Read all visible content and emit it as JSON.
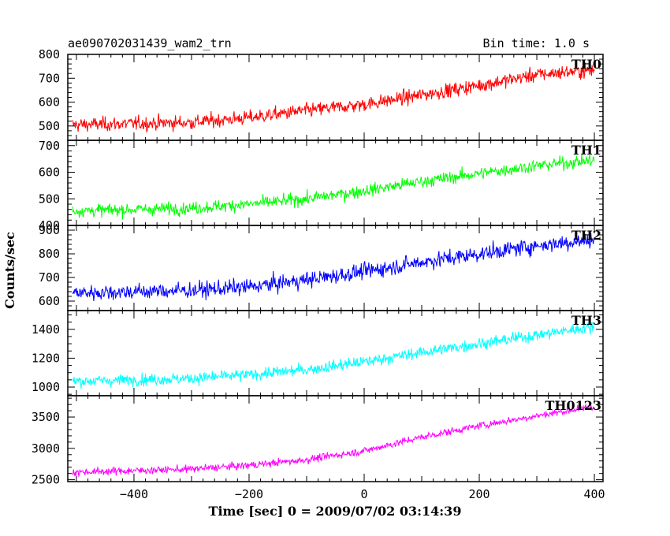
{
  "header": {
    "title": "ae090702031439_wam2_trn",
    "bin_time": "Bin time: 1.0 s"
  },
  "chart_data": {
    "type": "line",
    "xlabel": "Time [sec] 0 = 2009/07/02 03:14:39",
    "ylabel": "Counts/sec",
    "xlim": [
      -515,
      415
    ],
    "x_ticks": [
      -400,
      -200,
      0,
      200,
      400
    ],
    "x_tick_labels": [
      "−400",
      "−200",
      "0",
      "200",
      "400"
    ],
    "x_range": [
      -507,
      400
    ],
    "bin": 1.0,
    "series": [
      {
        "name": "TH0",
        "color": "#ff0000",
        "ylim": [
          440,
          800
        ],
        "y_ticks": [
          500,
          600,
          700,
          800
        ],
        "y_tick_labels": [
          "500",
          "600",
          "700",
          "800"
        ],
        "trend": [
          [
            -500,
            505
          ],
          [
            -300,
            515
          ],
          [
            -200,
            535
          ],
          [
            -100,
            565
          ],
          [
            0,
            590
          ],
          [
            100,
            630
          ],
          [
            200,
            670
          ],
          [
            300,
            715
          ],
          [
            400,
            735
          ]
        ],
        "noise_sd": 28
      },
      {
        "name": "TH1",
        "color": "#00ff00",
        "ylim": [
          400,
          720
        ],
        "y_ticks": [
          400,
          500,
          600,
          700
        ],
        "y_tick_labels": [
          "400",
          "500",
          "600",
          "700"
        ],
        "trend": [
          [
            -500,
            455
          ],
          [
            -300,
            465
          ],
          [
            -200,
            480
          ],
          [
            -100,
            500
          ],
          [
            0,
            530
          ],
          [
            100,
            565
          ],
          [
            200,
            595
          ],
          [
            300,
            625
          ],
          [
            400,
            645
          ]
        ],
        "noise_sd": 22
      },
      {
        "name": "TH2",
        "color": "#0000ff",
        "ylim": [
          560,
          920
        ],
        "y_ticks": [
          600,
          700,
          800,
          900
        ],
        "y_tick_labels": [
          "600",
          "700",
          "800",
          "900"
        ],
        "trend": [
          [
            -500,
            635
          ],
          [
            -300,
            645
          ],
          [
            -200,
            660
          ],
          [
            -100,
            690
          ],
          [
            0,
            725
          ],
          [
            100,
            765
          ],
          [
            200,
            800
          ],
          [
            300,
            835
          ],
          [
            400,
            860
          ]
        ],
        "noise_sd": 32
      },
      {
        "name": "TH3",
        "color": "#00ffff",
        "ylim": [
          940,
          1530
        ],
        "y_ticks": [
          1000,
          1200,
          1400
        ],
        "y_tick_labels": [
          "1000",
          "1200",
          "1400"
        ],
        "trend": [
          [
            -500,
            1040
          ],
          [
            -300,
            1060
          ],
          [
            -200,
            1085
          ],
          [
            -100,
            1120
          ],
          [
            0,
            1175
          ],
          [
            100,
            1240
          ],
          [
            200,
            1300
          ],
          [
            300,
            1360
          ],
          [
            400,
            1420
          ]
        ],
        "noise_sd": 38
      },
      {
        "name": "TH0123",
        "color": "#ff00ff",
        "ylim": [
          2470,
          3840
        ],
        "y_ticks": [
          2500,
          3000,
          3500
        ],
        "y_tick_labels": [
          "2500",
          "3000",
          "3500"
        ],
        "trend": [
          [
            -500,
            2620
          ],
          [
            -300,
            2670
          ],
          [
            -200,
            2730
          ],
          [
            -100,
            2820
          ],
          [
            0,
            2960
          ],
          [
            100,
            3180
          ],
          [
            200,
            3360
          ],
          [
            300,
            3520
          ],
          [
            400,
            3670
          ]
        ],
        "noise_sd": 55
      }
    ]
  }
}
